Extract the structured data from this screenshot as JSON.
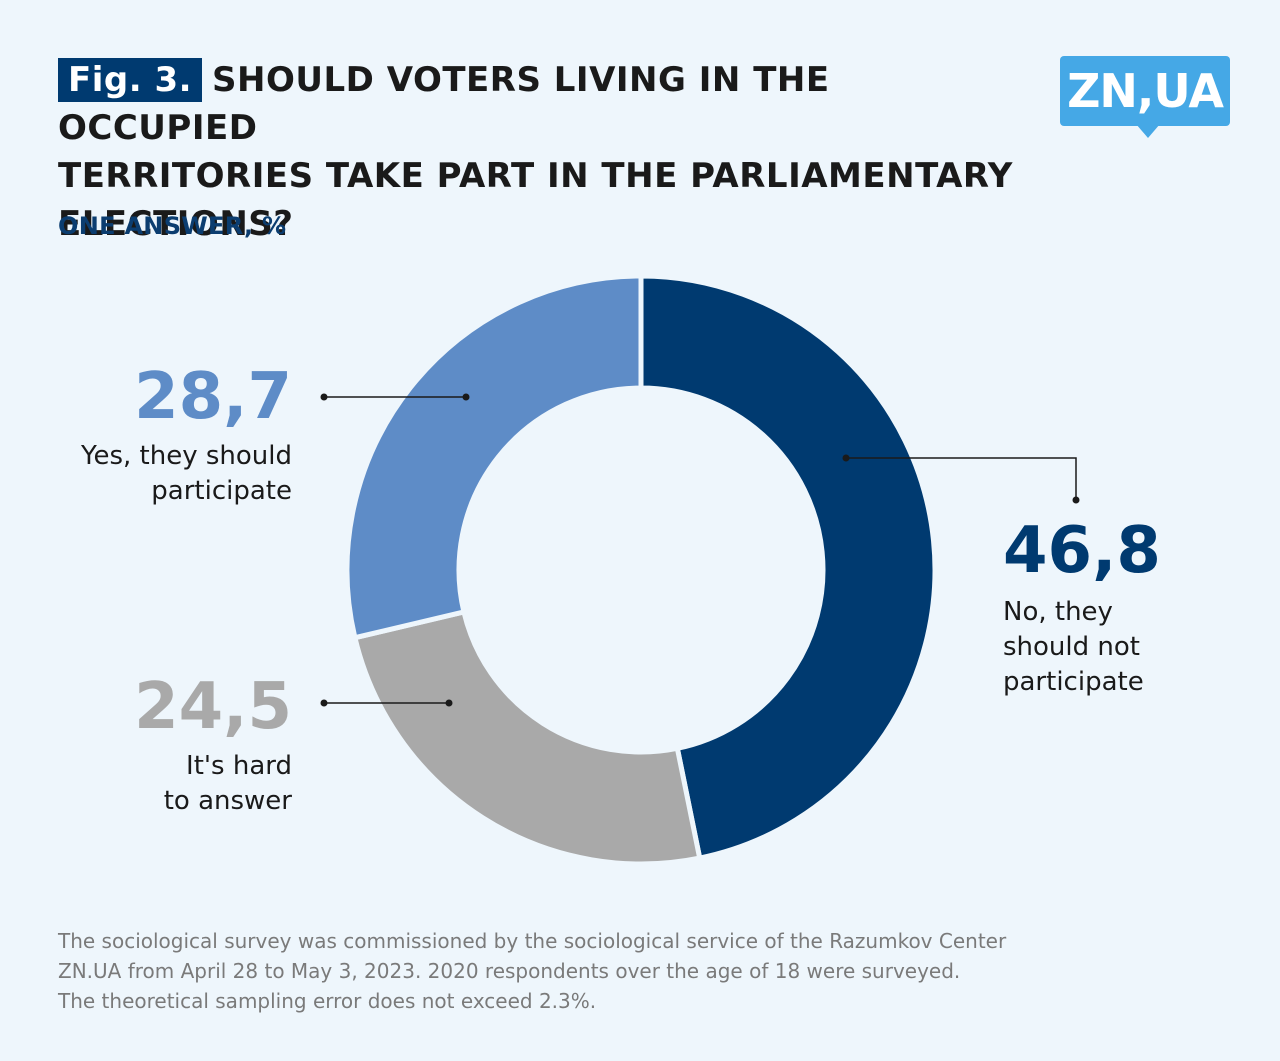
{
  "header": {
    "fig_label": "Fig. 3.",
    "title_line1": "SHOULD VOTERS LIVING IN THE OCCUPIED",
    "title_line2": "TERRITORIES TAKE PART IN THE PARLIAMENTARY",
    "title_line3": "ELECTIONS?",
    "subtitle": "ONE ANSWER, %"
  },
  "logo": {
    "text": "ZN,UA"
  },
  "chart_data": {
    "type": "pie",
    "variant": "donut",
    "title": "SHOULD VOTERS LIVING IN THE OCCUPIED TERRITORIES TAKE PART IN THE PARLIAMENTARY ELECTIONS?",
    "subtitle": "ONE ANSWER, %",
    "slices": [
      {
        "value": 46.8,
        "value_label": "46,8",
        "label_lines": [
          "No, they",
          "should not",
          "participate"
        ],
        "color": "#003a70",
        "value_color": "#003a70"
      },
      {
        "value": 24.5,
        "value_label": "24,5",
        "label_lines": [
          "It's hard",
          "to answer"
        ],
        "color": "#a9a9a9",
        "value_color": "#a9a9a9"
      },
      {
        "value": 28.7,
        "value_label": "28,7",
        "label_lines": [
          "Yes, they should",
          "participate"
        ],
        "color": "#5e8cc7",
        "value_color": "#5e8cc7"
      }
    ],
    "start": "12 o'clock",
    "direction": "clockwise"
  },
  "footnote": {
    "line1": "The sociological survey was commissioned by the sociological service of the Razumkov Center",
    "line2": "ZN.UA from April 28 to May 3, 2023. 2020 respondents over the age of 18 were surveyed.",
    "line3": "The theoretical sampling error does not exceed 2.3%."
  }
}
